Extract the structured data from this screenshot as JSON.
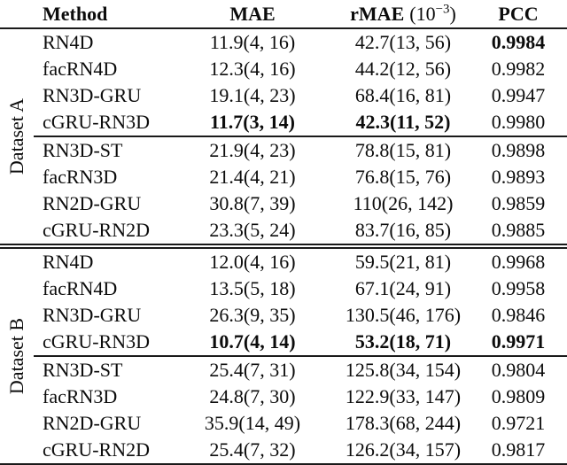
{
  "table": {
    "header": {
      "method": "Method",
      "mae": "MAE",
      "rmae": "rMAE",
      "rmae_unit_base": "(10",
      "rmae_unit_exp": "−3",
      "rmae_unit_close": ")",
      "pcc": "PCC"
    },
    "groups": [
      {
        "label": "Dataset A",
        "rows": [
          {
            "method": "RN4D",
            "mae": "11.9(4, 16)",
            "rmae": "42.7(13, 56)",
            "pcc": "0.9984"
          },
          {
            "method": "facRN4D",
            "mae": "12.3(4, 16)",
            "rmae": "44.2(12, 56)",
            "pcc": "0.9982"
          },
          {
            "method": "RN3D-GRU",
            "mae": "19.1(4, 23)",
            "rmae": "68.4(16, 81)",
            "pcc": "0.9947"
          },
          {
            "method": "cGRU-RN3D",
            "mae": "11.7(3, 14)",
            "rmae": "42.3(11, 52)",
            "pcc": "0.9980"
          },
          {
            "method": "RN3D-ST",
            "mae": "21.9(4, 23)",
            "rmae": "78.8(15, 81)",
            "pcc": "0.9898"
          },
          {
            "method": "facRN3D",
            "mae": "21.4(4, 21)",
            "rmae": "76.8(15, 76)",
            "pcc": "0.9893"
          },
          {
            "method": "RN2D-GRU",
            "mae": "30.8(7, 39)",
            "rmae": "110(26, 142)",
            "pcc": "0.9859"
          },
          {
            "method": "cGRU-RN2D",
            "mae": "23.3(5, 24)",
            "rmae": "83.7(16, 85)",
            "pcc": "0.9885"
          }
        ]
      },
      {
        "label": "Dataset B",
        "rows": [
          {
            "method": "RN4D",
            "mae": "12.0(4, 16)",
            "rmae": "59.5(21, 81)",
            "pcc": "0.9968"
          },
          {
            "method": "facRN4D",
            "mae": "13.5(5, 18)",
            "rmae": "67.1(24, 91)",
            "pcc": "0.9958"
          },
          {
            "method": "RN3D-GRU",
            "mae": "26.3(9, 35)",
            "rmae": "130.5(46, 176)",
            "pcc": "0.9846"
          },
          {
            "method": "cGRU-RN3D",
            "mae": "10.7(4, 14)",
            "rmae": "53.2(18, 71)",
            "pcc": "0.9971"
          },
          {
            "method": "RN3D-ST",
            "mae": "25.4(7, 31)",
            "rmae": "125.8(34, 154)",
            "pcc": "0.9804"
          },
          {
            "method": "facRN3D",
            "mae": "24.8(7, 30)",
            "rmae": "122.9(33, 147)",
            "pcc": "0.9809"
          },
          {
            "method": "RN2D-GRU",
            "mae": "35.9(14, 49)",
            "rmae": "178.3(68, 244)",
            "pcc": "0.9721"
          },
          {
            "method": "cGRU-RN2D",
            "mae": "25.4(7, 32)",
            "rmae": "126.2(34, 157)",
            "pcc": "0.9817"
          }
        ]
      }
    ],
    "colors": {
      "text": "#0c0c0c",
      "rule": "#1a1a1a",
      "background": "#ffffff"
    }
  }
}
